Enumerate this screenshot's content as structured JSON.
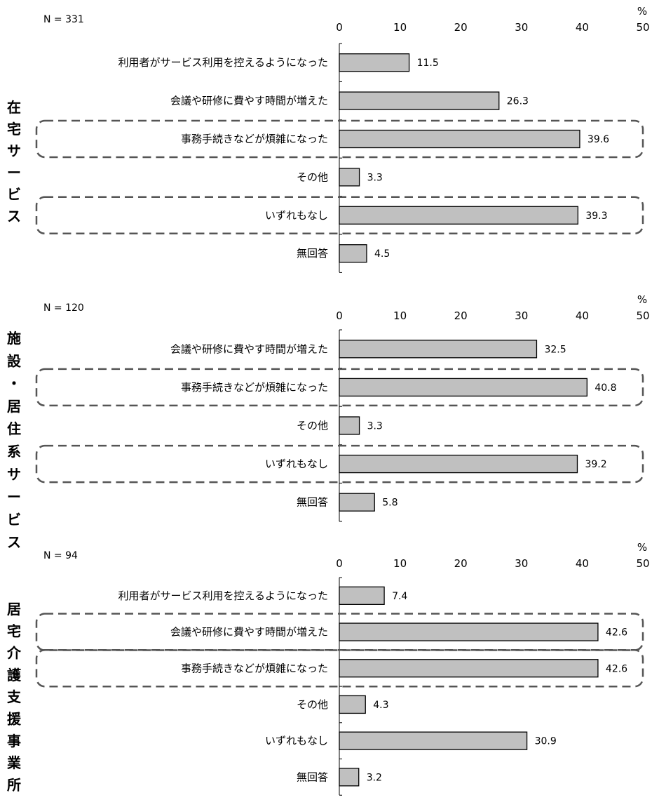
{
  "chart_data": [
    {
      "type": "bar",
      "group_label": "在宅サービス",
      "n_label": "N = 331",
      "unit": "%",
      "xlim": [
        0,
        50
      ],
      "ticks": [
        0,
        10,
        20,
        30,
        40,
        50
      ],
      "categories": [
        "利用者がサービス利用を控えるようになった",
        "会議や研修に費やす時間が増えた",
        "事務手続きなどが煩雑になった",
        "その他",
        "いずれもなし",
        "無回答"
      ],
      "values": [
        11.5,
        26.3,
        39.6,
        3.3,
        39.3,
        4.5
      ],
      "value_labels": [
        "11.5",
        "26.3",
        "39.6",
        "3.3",
        "39.3",
        "4.5"
      ],
      "highlighted": [
        2,
        4
      ]
    },
    {
      "type": "bar",
      "group_label": "施設・居住系サービス",
      "n_label": "N = 120",
      "unit": "%",
      "xlim": [
        0,
        50
      ],
      "ticks": [
        0,
        10,
        20,
        30,
        40,
        50
      ],
      "categories": [
        "会議や研修に費やす時間が増えた",
        "事務手続きなどが煩雑になった",
        "その他",
        "いずれもなし",
        "無回答"
      ],
      "values": [
        32.5,
        40.8,
        3.3,
        39.2,
        5.8
      ],
      "value_labels": [
        "32.5",
        "40.8",
        "3.3",
        "39.2",
        "5.8"
      ],
      "highlighted": [
        1,
        3
      ]
    },
    {
      "type": "bar",
      "group_label": "居宅介護支援事業所",
      "n_label": "N = 94",
      "unit": "%",
      "xlim": [
        0,
        50
      ],
      "ticks": [
        0,
        10,
        20,
        30,
        40,
        50
      ],
      "categories": [
        "利用者がサービス利用を控えるようになった",
        "会議や研修に費やす時間が増えた",
        "事務手続きなどが煩雑になった",
        "その他",
        "いずれもなし",
        "無回答"
      ],
      "values": [
        7.4,
        42.6,
        42.6,
        4.3,
        30.9,
        3.2
      ],
      "value_labels": [
        "7.4",
        "42.6",
        "42.6",
        "4.3",
        "30.9",
        "3.2"
      ],
      "highlighted": [
        1,
        2
      ]
    }
  ]
}
